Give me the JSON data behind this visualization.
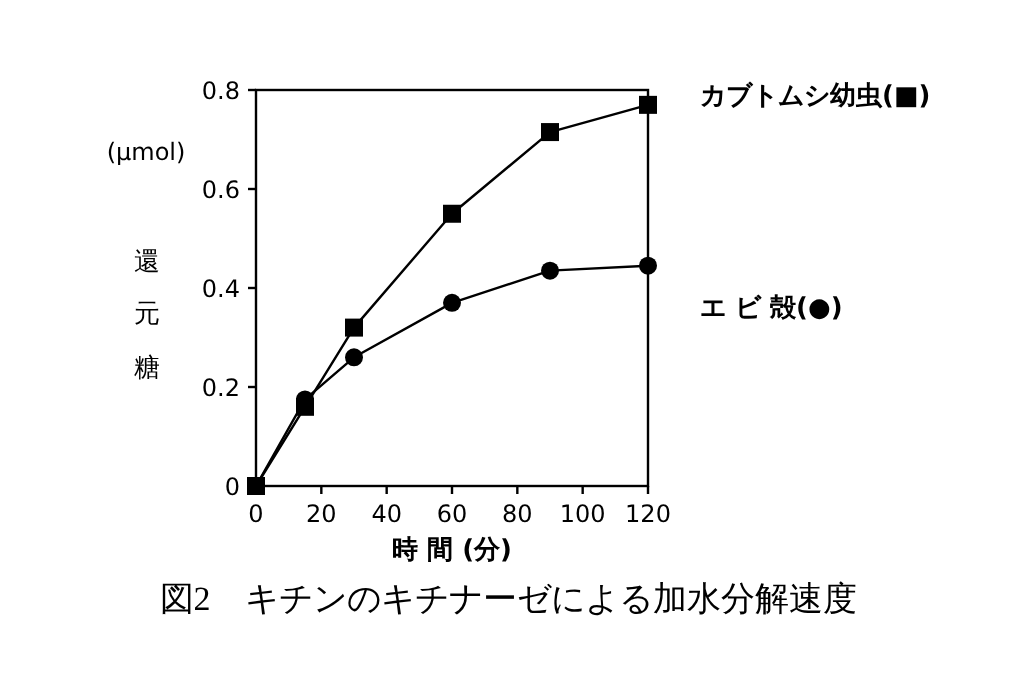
{
  "chart_data": {
    "type": "line",
    "title": "図2　キチンのキチナーゼによる加水分解速度",
    "xlabel": "時 間 (分)",
    "ylabel": "還元糖",
    "annotations": [
      "(μmol)"
    ],
    "xlim": [
      0,
      120
    ],
    "xticks": [
      0,
      20,
      40,
      60,
      80,
      100,
      120
    ],
    "ylim": [
      0,
      0.8
    ],
    "yticks": [
      0,
      0.2,
      0.4,
      0.6,
      0.8
    ],
    "legend": "right",
    "grid": false,
    "series": [
      {
        "name": "カブトムシ幼虫(■)",
        "color": "#000000",
        "marker": "square",
        "x": [
          0,
          15,
          30,
          60,
          90,
          120
        ],
        "values": [
          0,
          0.16,
          0.32,
          0.55,
          0.715,
          0.77
        ]
      },
      {
        "name": "エ ビ 殻(●)",
        "color": "#000000",
        "marker": "circle",
        "x": [
          0,
          15,
          30,
          60,
          90,
          120
        ],
        "values": [
          0,
          0.175,
          0.26,
          0.37,
          0.435,
          0.445
        ]
      }
    ]
  }
}
